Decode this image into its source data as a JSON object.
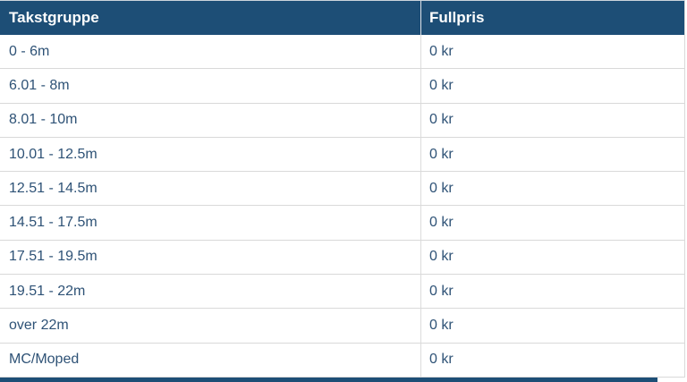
{
  "table": {
    "columns": [
      {
        "label": "Takstgruppe"
      },
      {
        "label": "Fullpris"
      }
    ],
    "rows": [
      {
        "takstgruppe": "0 - 6m",
        "fullpris": "0 kr"
      },
      {
        "takstgruppe": "6.01 - 8m",
        "fullpris": "0 kr"
      },
      {
        "takstgruppe": "8.01 - 10m",
        "fullpris": "0 kr"
      },
      {
        "takstgruppe": "10.01 - 12.5m",
        "fullpris": "0 kr"
      },
      {
        "takstgruppe": "12.51 - 14.5m",
        "fullpris": "0 kr"
      },
      {
        "takstgruppe": "14.51 - 17.5m",
        "fullpris": "0 kr"
      },
      {
        "takstgruppe": "17.51 - 19.5m",
        "fullpris": "0 kr"
      },
      {
        "takstgruppe": "19.51 - 22m",
        "fullpris": "0 kr"
      },
      {
        "takstgruppe": "over 22m",
        "fullpris": "0 kr"
      },
      {
        "takstgruppe": "MC/Moped",
        "fullpris": "0 kr"
      }
    ]
  },
  "colors": {
    "header_background": "#1d4e76",
    "header_text": "#ffffff",
    "body_text": "#2e5276",
    "row_border": "#d9d9d9",
    "next_table_strip": "#1d4e76"
  }
}
